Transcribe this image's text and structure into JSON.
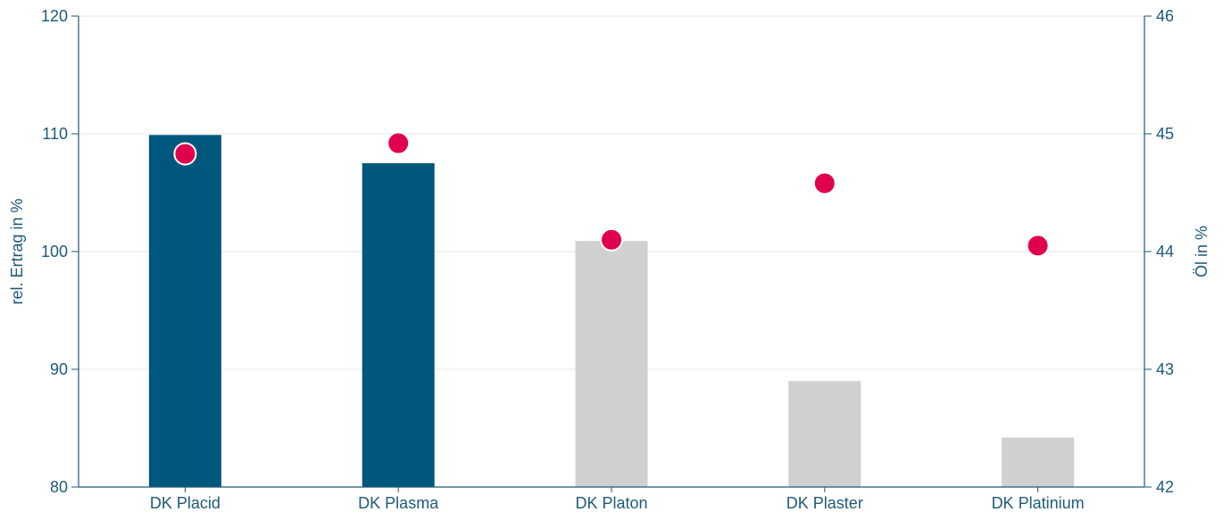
{
  "chart_data": {
    "type": "bar",
    "categories": [
      "DK Placid",
      "DK Plasma",
      "DK Platon",
      "DK Plaster",
      "DK Platinium"
    ],
    "series": [
      {
        "axis": "left",
        "kind": "bar",
        "values": [
          109.9,
          107.5,
          100.9,
          89.0,
          84.2
        ],
        "colors": [
          "#00577d",
          "#00577d",
          "#d0d0d0",
          "#d0d0d0",
          "#d0d0d0"
        ]
      },
      {
        "axis": "right",
        "kind": "scatter",
        "values": [
          44.83,
          44.92,
          44.1,
          44.58,
          44.05
        ],
        "color": "#e0004d"
      }
    ],
    "ylabel": "rel. Ertrag in %",
    "y2label": "Öl in %",
    "ylim": [
      80,
      120
    ],
    "y2lim": [
      42,
      46
    ],
    "yticks": [
      "80",
      "90",
      "100",
      "110",
      "120"
    ],
    "y2ticks": [
      "42",
      "43",
      "44",
      "45",
      "46"
    ],
    "grid": true,
    "axis_color": "#1e5a78"
  }
}
